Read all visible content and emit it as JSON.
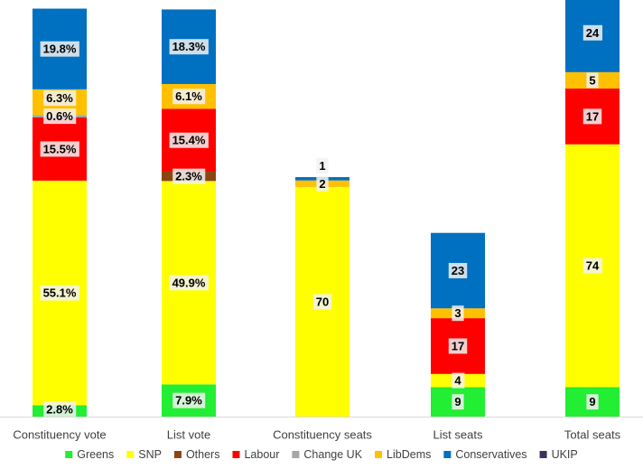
{
  "chart_data": {
    "type": "bar",
    "stacked": true,
    "categories": [
      "Constituency vote",
      "List vote",
      "Constituency seats",
      "List seats",
      "Total seats"
    ],
    "axis_visible": false,
    "grid": false,
    "legend_position": "bottom",
    "series": [
      {
        "name": "Greens",
        "color": "#22ee33",
        "values": [
          2.8,
          7.9,
          0,
          9,
          9
        ],
        "labels": [
          "2.8%",
          "7.9%",
          "",
          "9",
          "9"
        ]
      },
      {
        "name": "SNP",
        "color": "#ffff00",
        "values": [
          55.1,
          49.9,
          70,
          4,
          74
        ],
        "labels": [
          "55.1%",
          "49.9%",
          "70",
          "4",
          "74"
        ]
      },
      {
        "name": "Others",
        "color": "#8b4513",
        "values": [
          0,
          2.3,
          0,
          0,
          0
        ],
        "labels": [
          "",
          "2.3%",
          "",
          "",
          ""
        ]
      },
      {
        "name": "Labour",
        "color": "#ff0000",
        "values": [
          15.5,
          15.4,
          0,
          17,
          17
        ],
        "labels": [
          "15.5%",
          "15.4%",
          "",
          "17",
          "17"
        ]
      },
      {
        "name": "Change UK",
        "color": "#a6a6a6",
        "values": [
          0.6,
          0,
          0,
          0,
          0
        ],
        "labels": [
          "0.6%",
          "",
          "",
          "",
          ""
        ]
      },
      {
        "name": "LibDems",
        "color": "#ffc000",
        "values": [
          6.3,
          6.1,
          2,
          3,
          5
        ],
        "labels": [
          "6.3%",
          "6.1%",
          "2",
          "3",
          "5"
        ]
      },
      {
        "name": "Conservatives",
        "color": "#0070c0",
        "values": [
          19.8,
          18.3,
          1,
          23,
          24
        ],
        "labels": [
          "19.8%",
          "18.3%",
          "1",
          "23",
          "24"
        ]
      },
      {
        "name": "UKIP",
        "color": "#403060",
        "values": [
          0,
          0,
          0,
          0,
          0
        ],
        "labels": [
          "",
          "",
          "",
          "",
          ""
        ]
      }
    ]
  }
}
